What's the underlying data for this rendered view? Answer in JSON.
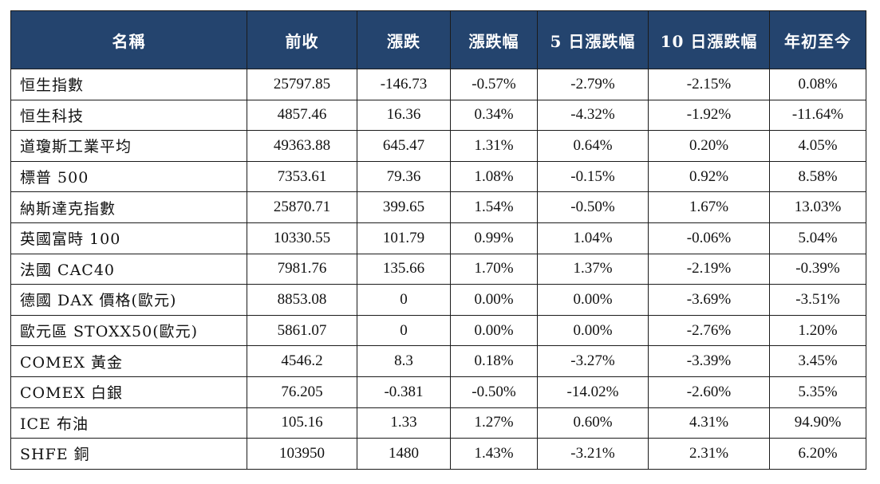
{
  "table": {
    "header_bg": "#24446e",
    "headers": [
      "名稱",
      "前收",
      "漲跌",
      "漲跌幅",
      "5 日漲跌幅",
      "10 日漲跌幅",
      "年初至今"
    ],
    "rows": [
      [
        "恒生指數",
        "25797.85",
        "-146.73",
        "-0.57%",
        "-2.79%",
        "-2.15%",
        "0.08%"
      ],
      [
        "恒生科技",
        "4857.46",
        "16.36",
        "0.34%",
        "-4.32%",
        "-1.92%",
        "-11.64%"
      ],
      [
        "道瓊斯工業平均",
        "49363.88",
        "645.47",
        "1.31%",
        "0.64%",
        "0.20%",
        "4.05%"
      ],
      [
        "標普 500",
        "7353.61",
        "79.36",
        "1.08%",
        "-0.15%",
        "0.92%",
        "8.58%"
      ],
      [
        "納斯達克指數",
        "25870.71",
        "399.65",
        "1.54%",
        "-0.50%",
        "1.67%",
        "13.03%"
      ],
      [
        "英國富時 100",
        "10330.55",
        "101.79",
        "0.99%",
        "1.04%",
        "-0.06%",
        "5.04%"
      ],
      [
        "法國 CAC40",
        "7981.76",
        "135.66",
        "1.70%",
        "1.37%",
        "-2.19%",
        "-0.39%"
      ],
      [
        "德國 DAX 價格(歐元)",
        "8853.08",
        "0",
        "0.00%",
        "0.00%",
        "-3.69%",
        "-3.51%"
      ],
      [
        "歐元區 STOXX50(歐元)",
        "5861.07",
        "0",
        "0.00%",
        "0.00%",
        "-2.76%",
        "1.20%"
      ],
      [
        "COMEX 黃金",
        "4546.2",
        "8.3",
        "0.18%",
        "-3.27%",
        "-3.39%",
        "3.45%"
      ],
      [
        "COMEX 白銀",
        "76.205",
        "-0.381",
        "-0.50%",
        "-14.02%",
        "-2.60%",
        "5.35%"
      ],
      [
        "ICE 布油",
        "105.16",
        "1.33",
        "1.27%",
        "0.60%",
        "4.31%",
        "94.90%"
      ],
      [
        "SHFE 銅",
        "103950",
        "1480",
        "1.43%",
        "-3.21%",
        "2.31%",
        "6.20%"
      ]
    ]
  }
}
